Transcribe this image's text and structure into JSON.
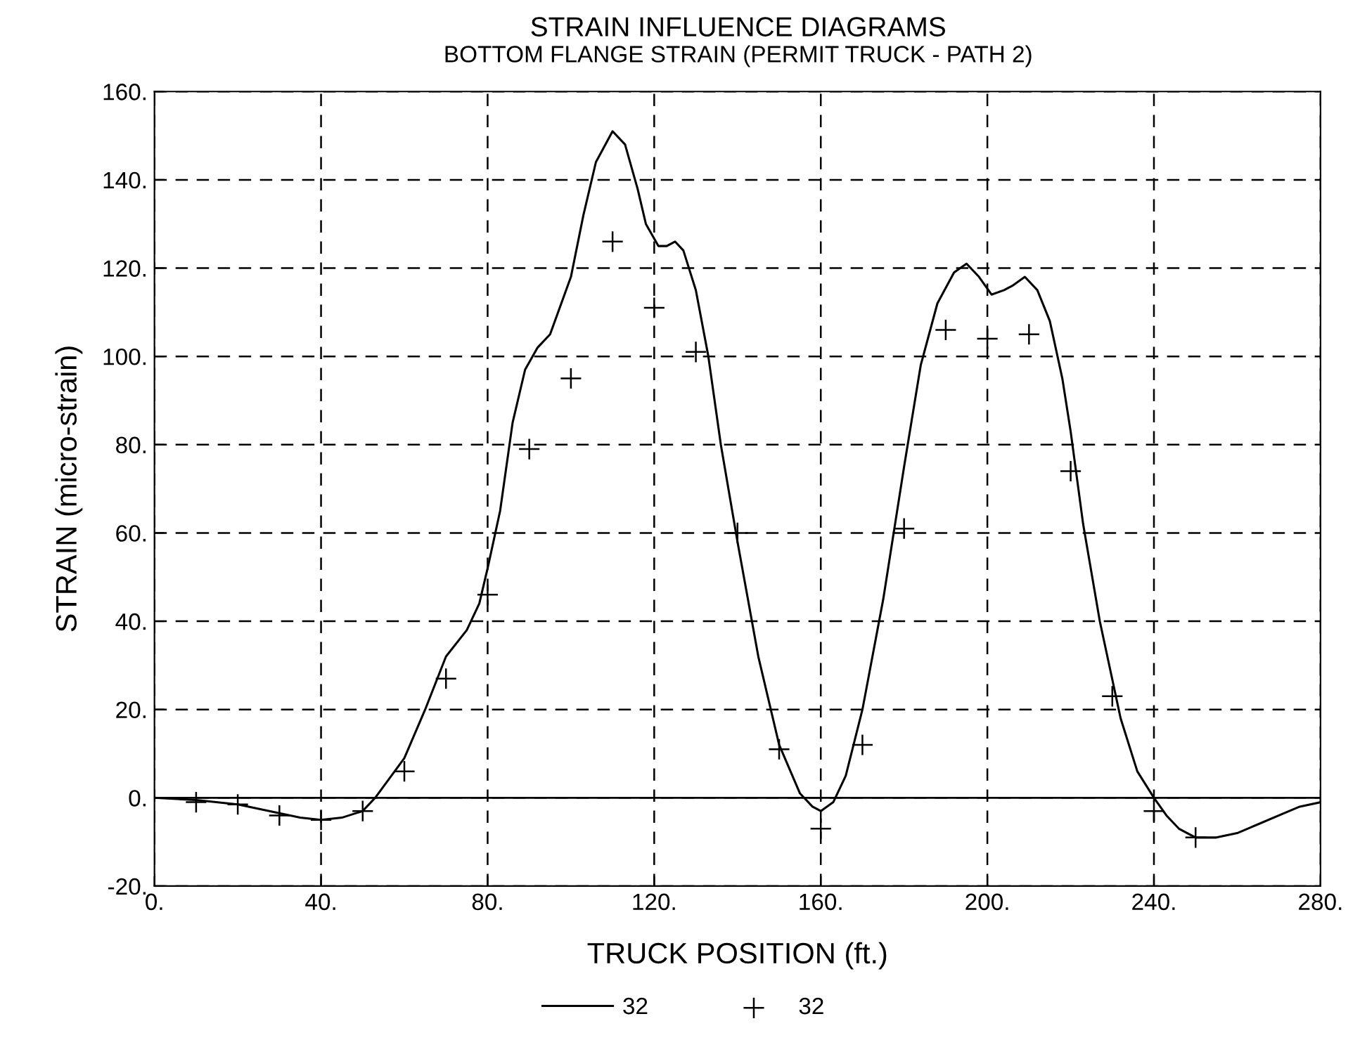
{
  "chart_data": {
    "type": "line",
    "title": "STRAIN INFLUENCE DIAGRAMS",
    "subtitle": "BOTTOM FLANGE STRAIN (PERMIT TRUCK - PATH 2)",
    "xlabel": "TRUCK POSITION (ft.)",
    "ylabel": "STRAIN (micro-strain)",
    "xlim": [
      0,
      280
    ],
    "ylim": [
      -20,
      160
    ],
    "xticks": [
      {
        "value": 0,
        "label": "0."
      },
      {
        "value": 40,
        "label": "40."
      },
      {
        "value": 80,
        "label": "80."
      },
      {
        "value": 120,
        "label": "120."
      },
      {
        "value": 160,
        "label": "160."
      },
      {
        "value": 200,
        "label": "200."
      },
      {
        "value": 240,
        "label": "240."
      },
      {
        "value": 280,
        "label": "280."
      }
    ],
    "yticks": [
      {
        "value": -20,
        "label": "-20."
      },
      {
        "value": 0,
        "label": "0."
      },
      {
        "value": 20,
        "label": "20."
      },
      {
        "value": 40,
        "label": "40."
      },
      {
        "value": 60,
        "label": "60."
      },
      {
        "value": 80,
        "label": "80."
      },
      {
        "value": 100,
        "label": "100."
      },
      {
        "value": 120,
        "label": "120."
      },
      {
        "value": 140,
        "label": "140."
      },
      {
        "value": 160,
        "label": "160."
      }
    ],
    "grid": true,
    "legend": "bottom",
    "ref_lines": [
      {
        "axis": "y",
        "value": 0,
        "color": "#000000",
        "line_style": "solid"
      }
    ],
    "series": [
      {
        "name": "32",
        "color": "#000000",
        "line_style": "solid",
        "marker": "none",
        "x": [
          0,
          10,
          20,
          30,
          35,
          40,
          45,
          50,
          53,
          60,
          65,
          70,
          75,
          78,
          80,
          83,
          86,
          89,
          92,
          95,
          100,
          103,
          106,
          110,
          113,
          116,
          118,
          121,
          123,
          125,
          127,
          130,
          133,
          136,
          140,
          145,
          150,
          155,
          158,
          160,
          163,
          166,
          170,
          175,
          180,
          184,
          188,
          192,
          195,
          198,
          201,
          204,
          206,
          209,
          212,
          215,
          218,
          220,
          223,
          227,
          232,
          236,
          240,
          243,
          246,
          250,
          255,
          260,
          265,
          270,
          275,
          280
        ],
        "values": [
          0,
          -0.5,
          -1.5,
          -3.5,
          -4.5,
          -5,
          -4.5,
          -3,
          0,
          9,
          20,
          32,
          38,
          44,
          52,
          65,
          85,
          97,
          102,
          105,
          118,
          132,
          144,
          151,
          148,
          138,
          130,
          125,
          125,
          126,
          124,
          115,
          100,
          80,
          58,
          32,
          12,
          1,
          -2,
          -3,
          -1,
          5,
          20,
          45,
          75,
          98,
          112,
          119,
          121,
          118,
          114,
          115,
          116,
          118,
          115,
          108,
          95,
          83,
          62,
          40,
          18,
          6,
          0,
          -4,
          -7,
          -9,
          -9,
          -8,
          -6,
          -4,
          -2,
          -1
        ]
      },
      {
        "name": "32",
        "type": "scatter",
        "color": "#000000",
        "marker": "cross",
        "x": [
          10,
          20,
          30,
          40,
          50,
          60,
          70,
          80,
          90,
          100,
          110,
          120,
          130,
          140,
          150,
          160,
          170,
          180,
          190,
          200,
          210,
          220,
          230,
          240,
          250
        ],
        "values": [
          -1,
          -1.5,
          -4,
          -5,
          -3,
          6,
          27,
          46,
          79,
          95,
          126,
          111,
          101,
          60,
          11,
          -7,
          12,
          61,
          106,
          104,
          105,
          74,
          23,
          -3,
          -9
        ]
      }
    ]
  }
}
